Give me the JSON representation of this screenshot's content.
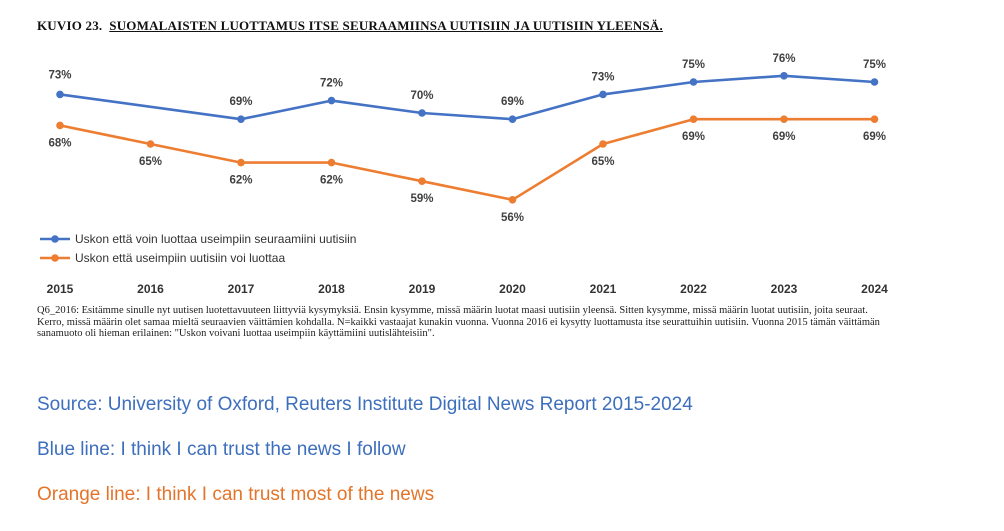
{
  "figure": {
    "label": "KUVIO 23.",
    "title": "SUOMALAISTEN LUOTTAMUS ITSE SEURAAMIINSA UUTISIIN JA UUTISIIN YLEENSÄ."
  },
  "note": "Q6_2016: Esitämme sinulle nyt uutisen luotettavuuteen liittyviä kysymyksiä. Ensin kysymme, missä määrin luotat maasi uutisiin yleensä. Sitten kysymme, missä määrin luotat uutisiin, joita seuraat. Kerro, missä määrin olet samaa mieltä seuraavien väittämien kohdalla. N=kaikki vastaajat kunakin vuonna. Vuonna 2016 ei kysytty luottamusta itse seurattuihin uutisiin. Vuonna 2015 tämän väittämän sanamuoto oli hieman erilainen: \"Uskon voivani luottaa useimpiin käyttämiini uutislähteisiin\".",
  "captions": {
    "source": "Source: University of Oxford, Reuters Institute Digital News Report 2015-2024",
    "blue": "Blue line: I think I can trust the news I follow",
    "orange": "Orange line: I think I can trust most of the news"
  },
  "chart_data": {
    "type": "line",
    "x": [
      "2015",
      "2016",
      "2017",
      "2018",
      "2019",
      "2020",
      "2021",
      "2022",
      "2023",
      "2024"
    ],
    "series": [
      {
        "name": "Uskon että voin luottaa useimpiin seuraamiini uutisiin",
        "color": "#4472c4",
        "values": [
          73,
          null,
          69,
          72,
          70,
          69,
          73,
          75,
          76,
          75
        ],
        "labels": [
          "73%",
          null,
          "69%",
          "72%",
          "70%",
          "69%",
          "73%",
          "75%",
          "76%",
          "75%"
        ]
      },
      {
        "name": "Uskon että useimpiin uutisiin voi luottaa",
        "color": "#ed7d31",
        "values": [
          68,
          65,
          62,
          62,
          59,
          56,
          65,
          69,
          69,
          69
        ],
        "labels": [
          "68%",
          "65%",
          "62%",
          "62%",
          "59%",
          "56%",
          "65%",
          "69%",
          "69%",
          "69%"
        ]
      }
    ],
    "legend_position": "bottom-left",
    "grid": false
  }
}
